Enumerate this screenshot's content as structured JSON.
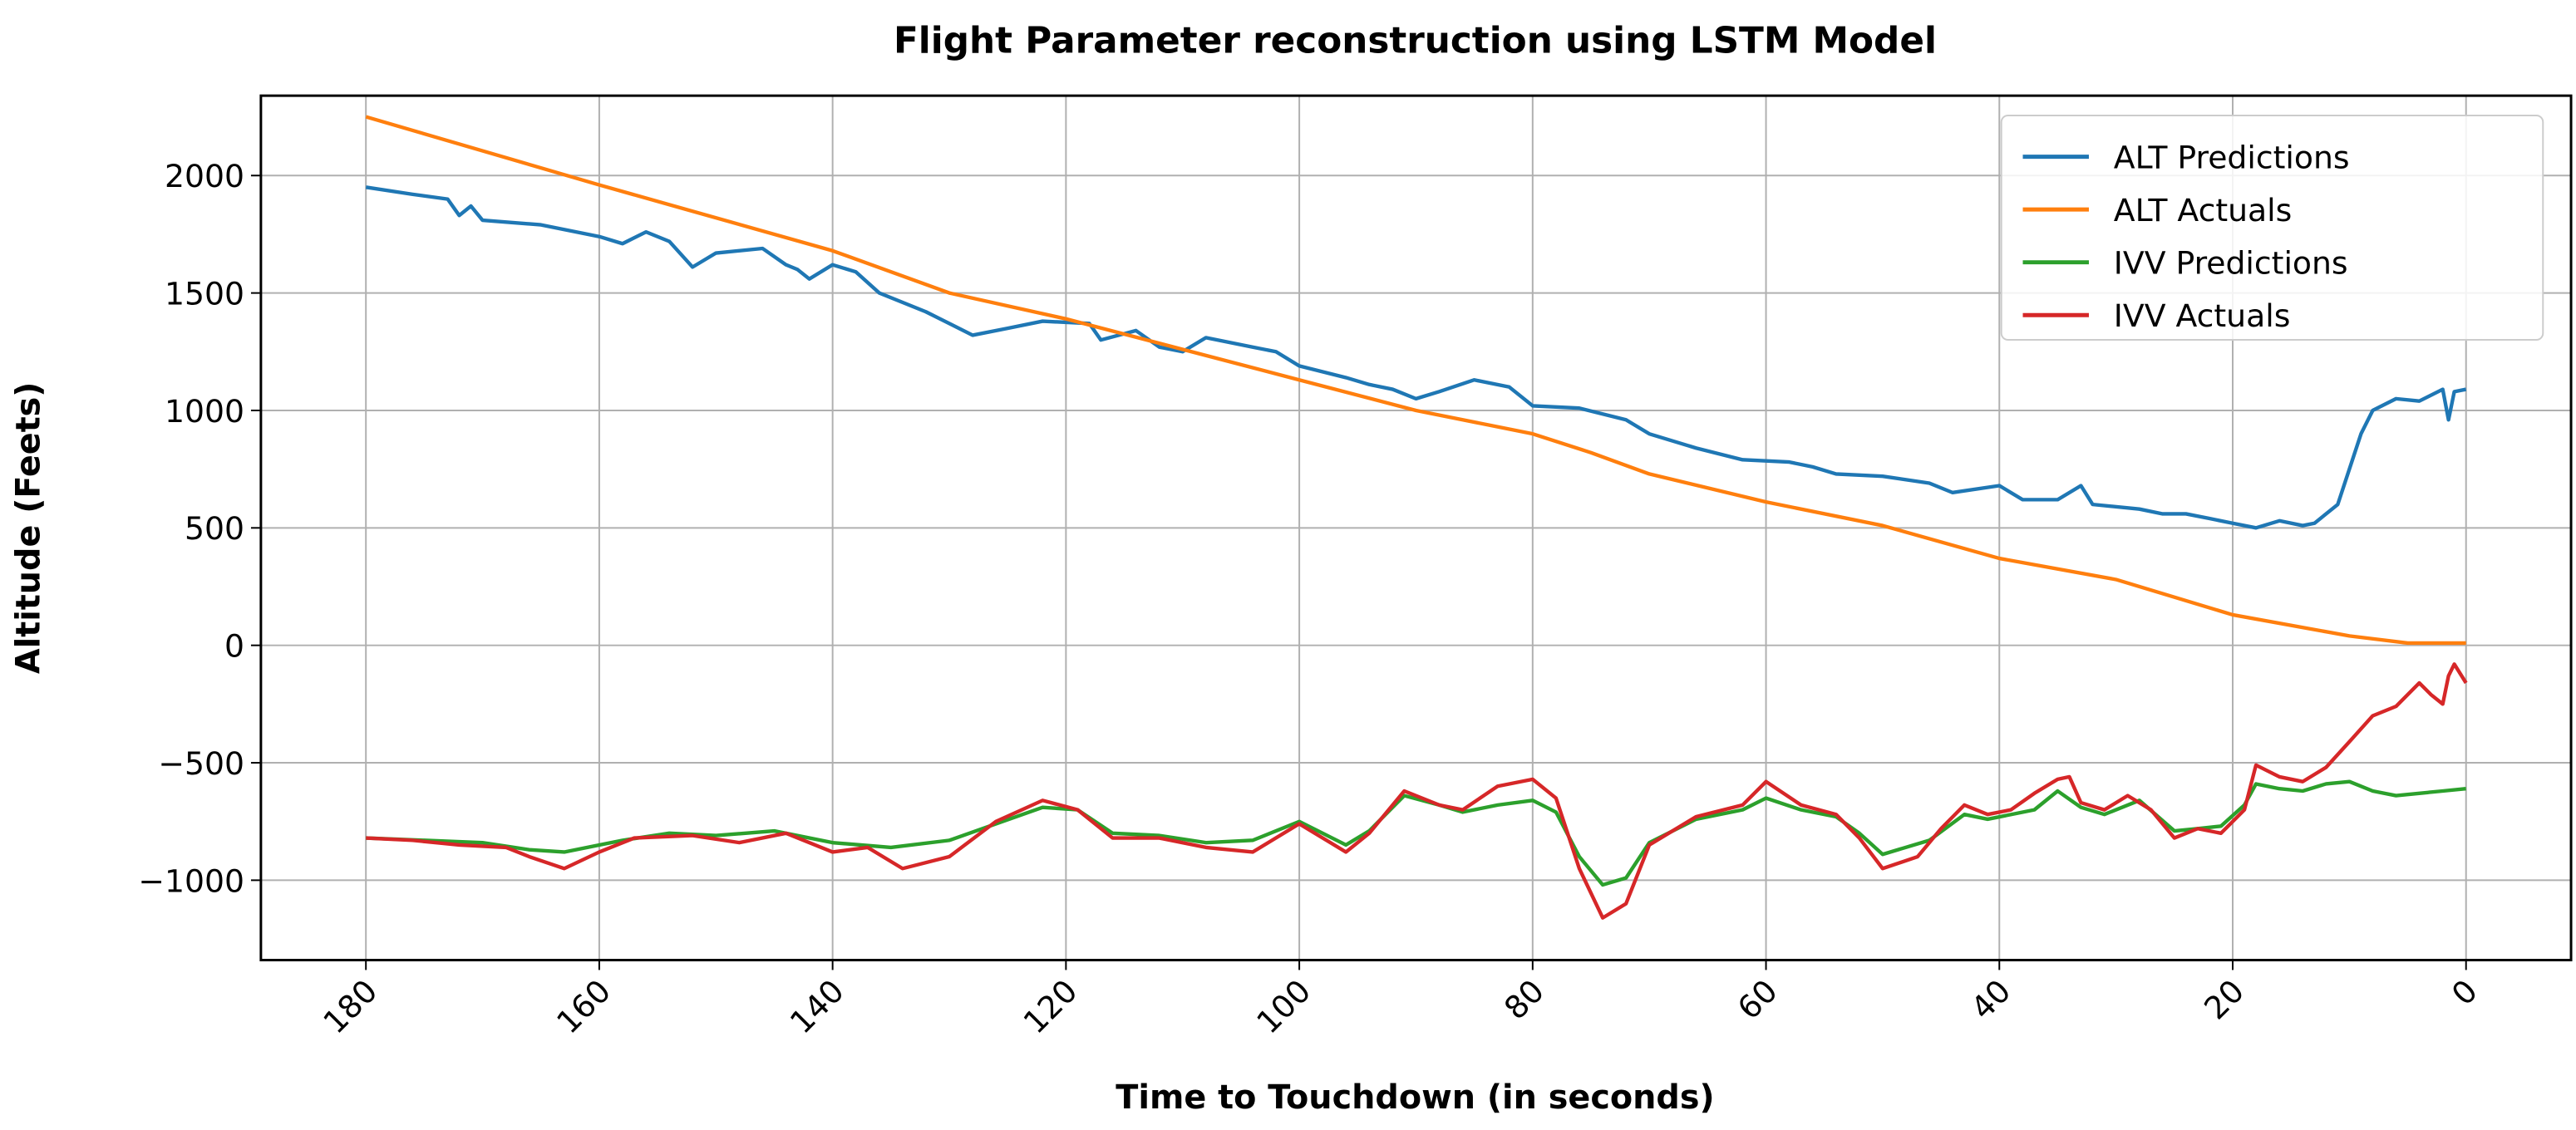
{
  "chart_data": {
    "type": "line",
    "title": "Flight Parameter reconstruction using LSTM Model",
    "xlabel": "Time to Touchdown (in seconds)",
    "ylabel": "Altitude (Feets)",
    "xlim": [
      189,
      -9
    ],
    "ylim": [
      -1340,
      2340
    ],
    "x_inverted": true,
    "grid": true,
    "legend_position": "top-right",
    "xticks": [
      180,
      160,
      140,
      120,
      100,
      80,
      60,
      40,
      20,
      0
    ],
    "xtick_labels": [
      "180",
      "160",
      "140",
      "120",
      "100",
      "80",
      "60",
      "40",
      "20",
      "0"
    ],
    "yticks": [
      2000,
      1500,
      1000,
      500,
      0,
      -500,
      -1000
    ],
    "ytick_labels": [
      "2000",
      "1500",
      "1000",
      "500",
      "0",
      "−500",
      "−1000"
    ],
    "series": [
      {
        "name": "ALT Predictions",
        "color": "#1f77b4",
        "points": [
          [
            180,
            1950
          ],
          [
            176,
            1920
          ],
          [
            173,
            1900
          ],
          [
            172,
            1830
          ],
          [
            171,
            1870
          ],
          [
            170,
            1810
          ],
          [
            165,
            1790
          ],
          [
            160,
            1740
          ],
          [
            158,
            1710
          ],
          [
            156,
            1760
          ],
          [
            154,
            1720
          ],
          [
            152,
            1610
          ],
          [
            150,
            1670
          ],
          [
            146,
            1690
          ],
          [
            144,
            1620
          ],
          [
            143,
            1600
          ],
          [
            142,
            1560
          ],
          [
            140,
            1620
          ],
          [
            138,
            1590
          ],
          [
            136,
            1500
          ],
          [
            132,
            1420
          ],
          [
            128,
            1320
          ],
          [
            125,
            1350
          ],
          [
            122,
            1380
          ],
          [
            118,
            1370
          ],
          [
            117,
            1300
          ],
          [
            114,
            1340
          ],
          [
            112,
            1270
          ],
          [
            110,
            1250
          ],
          [
            108,
            1310
          ],
          [
            104,
            1270
          ],
          [
            102,
            1250
          ],
          [
            100,
            1190
          ],
          [
            96,
            1140
          ],
          [
            94,
            1110
          ],
          [
            92,
            1090
          ],
          [
            90,
            1050
          ],
          [
            88,
            1080
          ],
          [
            85,
            1130
          ],
          [
            82,
            1100
          ],
          [
            80,
            1020
          ],
          [
            76,
            1010
          ],
          [
            72,
            960
          ],
          [
            70,
            900
          ],
          [
            66,
            840
          ],
          [
            62,
            790
          ],
          [
            58,
            780
          ],
          [
            56,
            760
          ],
          [
            54,
            730
          ],
          [
            50,
            720
          ],
          [
            46,
            690
          ],
          [
            44,
            650
          ],
          [
            40,
            680
          ],
          [
            38,
            620
          ],
          [
            35,
            620
          ],
          [
            33,
            680
          ],
          [
            32,
            600
          ],
          [
            28,
            580
          ],
          [
            26,
            560
          ],
          [
            24,
            560
          ],
          [
            22,
            540
          ],
          [
            20,
            520
          ],
          [
            18,
            500
          ],
          [
            16,
            530
          ],
          [
            14,
            510
          ],
          [
            13,
            520
          ],
          [
            11,
            600
          ],
          [
            9,
            900
          ],
          [
            8,
            1000
          ],
          [
            6,
            1050
          ],
          [
            4,
            1040
          ],
          [
            2,
            1090
          ],
          [
            1.5,
            960
          ],
          [
            1,
            1080
          ],
          [
            0,
            1090
          ]
        ]
      },
      {
        "name": "ALT Actuals",
        "color": "#ff7f0e",
        "points": [
          [
            180,
            2250
          ],
          [
            160,
            1960
          ],
          [
            140,
            1680
          ],
          [
            130,
            1500
          ],
          [
            120,
            1390
          ],
          [
            110,
            1260
          ],
          [
            100,
            1130
          ],
          [
            90,
            1000
          ],
          [
            80,
            900
          ],
          [
            75,
            820
          ],
          [
            70,
            730
          ],
          [
            60,
            610
          ],
          [
            50,
            510
          ],
          [
            40,
            370
          ],
          [
            30,
            280
          ],
          [
            20,
            130
          ],
          [
            10,
            40
          ],
          [
            5,
            10
          ],
          [
            0,
            10
          ]
        ]
      },
      {
        "name": "IVV Predictions",
        "color": "#2ca02c",
        "points": [
          [
            180,
            -820
          ],
          [
            175,
            -830
          ],
          [
            170,
            -840
          ],
          [
            166,
            -870
          ],
          [
            163,
            -880
          ],
          [
            158,
            -830
          ],
          [
            154,
            -800
          ],
          [
            150,
            -810
          ],
          [
            145,
            -790
          ],
          [
            140,
            -840
          ],
          [
            135,
            -860
          ],
          [
            130,
            -830
          ],
          [
            126,
            -760
          ],
          [
            122,
            -690
          ],
          [
            119,
            -700
          ],
          [
            116,
            -800
          ],
          [
            112,
            -810
          ],
          [
            108,
            -840
          ],
          [
            104,
            -830
          ],
          [
            100,
            -750
          ],
          [
            96,
            -850
          ],
          [
            94,
            -790
          ],
          [
            91,
            -640
          ],
          [
            88,
            -680
          ],
          [
            86,
            -710
          ],
          [
            83,
            -680
          ],
          [
            80,
            -660
          ],
          [
            78,
            -710
          ],
          [
            76,
            -900
          ],
          [
            74,
            -1020
          ],
          [
            72,
            -990
          ],
          [
            70,
            -840
          ],
          [
            66,
            -740
          ],
          [
            62,
            -700
          ],
          [
            60,
            -650
          ],
          [
            57,
            -700
          ],
          [
            54,
            -730
          ],
          [
            52,
            -800
          ],
          [
            50,
            -890
          ],
          [
            46,
            -830
          ],
          [
            43,
            -720
          ],
          [
            41,
            -740
          ],
          [
            37,
            -700
          ],
          [
            35,
            -620
          ],
          [
            33,
            -690
          ],
          [
            31,
            -720
          ],
          [
            28,
            -660
          ],
          [
            25,
            -790
          ],
          [
            23,
            -780
          ],
          [
            21,
            -770
          ],
          [
            19,
            -680
          ],
          [
            18,
            -590
          ],
          [
            16,
            -610
          ],
          [
            14,
            -620
          ],
          [
            12,
            -590
          ],
          [
            10,
            -580
          ],
          [
            8,
            -620
          ],
          [
            6,
            -640
          ],
          [
            4,
            -630
          ],
          [
            2,
            -620
          ],
          [
            0,
            -610
          ]
        ]
      },
      {
        "name": "IVV Actuals",
        "color": "#d62728",
        "points": [
          [
            180,
            -820
          ],
          [
            176,
            -830
          ],
          [
            172,
            -850
          ],
          [
            168,
            -860
          ],
          [
            166,
            -900
          ],
          [
            163,
            -950
          ],
          [
            160,
            -880
          ],
          [
            157,
            -820
          ],
          [
            152,
            -810
          ],
          [
            148,
            -840
          ],
          [
            144,
            -800
          ],
          [
            140,
            -880
          ],
          [
            137,
            -860
          ],
          [
            134,
            -950
          ],
          [
            130,
            -900
          ],
          [
            126,
            -750
          ],
          [
            122,
            -660
          ],
          [
            119,
            -700
          ],
          [
            116,
            -820
          ],
          [
            112,
            -820
          ],
          [
            108,
            -860
          ],
          [
            104,
            -880
          ],
          [
            100,
            -760
          ],
          [
            96,
            -880
          ],
          [
            94,
            -800
          ],
          [
            91,
            -620
          ],
          [
            88,
            -680
          ],
          [
            86,
            -700
          ],
          [
            83,
            -600
          ],
          [
            80,
            -570
          ],
          [
            78,
            -650
          ],
          [
            76,
            -950
          ],
          [
            74,
            -1160
          ],
          [
            72,
            -1100
          ],
          [
            70,
            -850
          ],
          [
            66,
            -730
          ],
          [
            62,
            -680
          ],
          [
            60,
            -580
          ],
          [
            57,
            -680
          ],
          [
            54,
            -720
          ],
          [
            52,
            -820
          ],
          [
            50,
            -950
          ],
          [
            47,
            -900
          ],
          [
            45,
            -780
          ],
          [
            43,
            -680
          ],
          [
            41,
            -720
          ],
          [
            39,
            -700
          ],
          [
            37,
            -630
          ],
          [
            35,
            -570
          ],
          [
            34,
            -560
          ],
          [
            33,
            -670
          ],
          [
            31,
            -700
          ],
          [
            29,
            -640
          ],
          [
            27,
            -700
          ],
          [
            25,
            -820
          ],
          [
            23,
            -780
          ],
          [
            21,
            -800
          ],
          [
            19,
            -700
          ],
          [
            18,
            -510
          ],
          [
            16,
            -560
          ],
          [
            14,
            -580
          ],
          [
            12,
            -520
          ],
          [
            10,
            -410
          ],
          [
            8,
            -300
          ],
          [
            6,
            -260
          ],
          [
            4,
            -160
          ],
          [
            3,
            -210
          ],
          [
            2,
            -250
          ],
          [
            1.5,
            -130
          ],
          [
            1,
            -80
          ],
          [
            0,
            -160
          ]
        ]
      }
    ]
  }
}
